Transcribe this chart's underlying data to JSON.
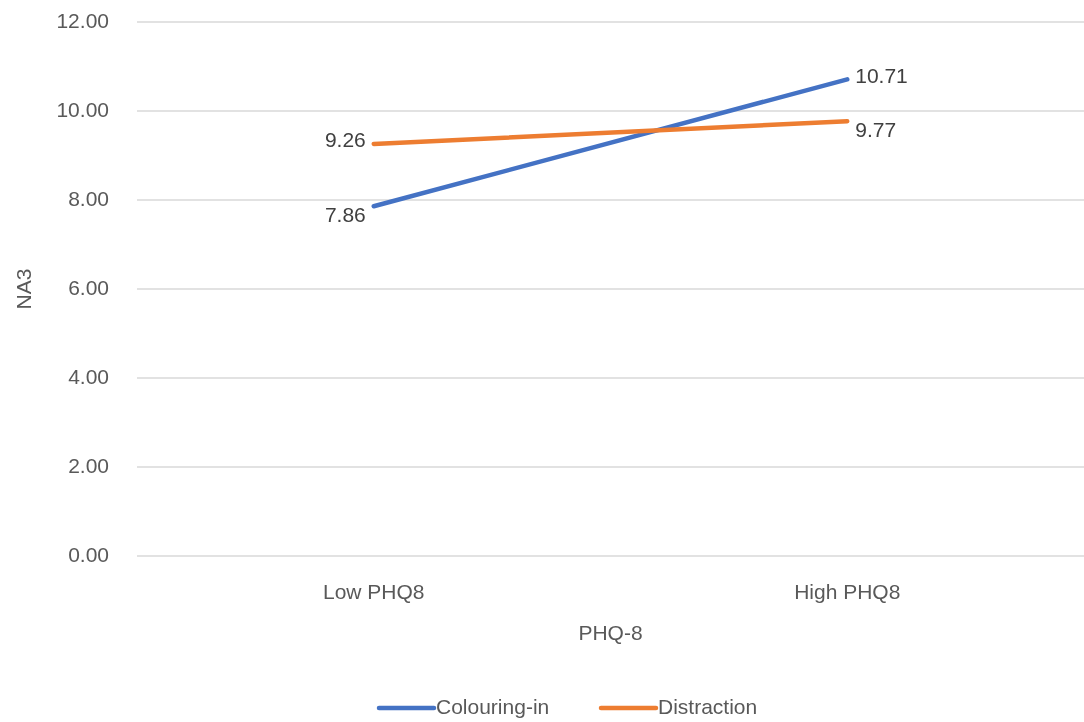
{
  "chart_data": {
    "type": "line",
    "xlabel": "PHQ-8",
    "ylabel": "NA3",
    "categories": [
      "Low PHQ8",
      "High PHQ8"
    ],
    "series": [
      {
        "name": "Colouring-in",
        "color": "#4472c4",
        "values": [
          7.86,
          10.71
        ]
      },
      {
        "name": "Distraction",
        "color": "#ed7d31",
        "values": [
          9.26,
          9.77
        ]
      }
    ],
    "ylim": [
      0,
      12
    ],
    "yticks": [
      {
        "value": 0,
        "label": "0.00"
      },
      {
        "value": 2,
        "label": "2.00"
      },
      {
        "value": 4,
        "label": "4.00"
      },
      {
        "value": 6,
        "label": "6.00"
      },
      {
        "value": 8,
        "label": "8.00"
      },
      {
        "value": 10,
        "label": "10.00"
      },
      {
        "value": 12,
        "label": "12.00"
      }
    ],
    "grid": "y",
    "legend": "bottom",
    "data_labels": true,
    "marker": "none",
    "line_style": "solid"
  }
}
